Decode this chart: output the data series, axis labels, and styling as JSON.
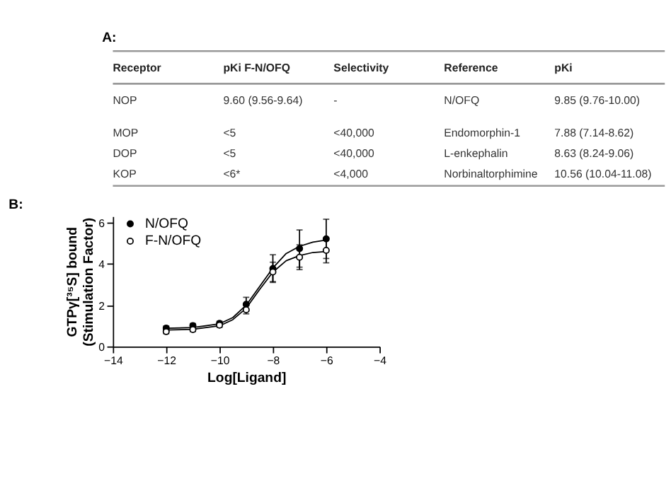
{
  "chart_data": [
    {
      "type": "other",
      "title": "A:",
      "categories": [
        "Receptor",
        "pKi F-N/OFQ",
        "Selectivity",
        "Reference",
        "pKi"
      ],
      "annotations": [
        "NOP",
        "9.60  (9.56-9.64)",
        "-",
        "N/OFQ",
        "9.85   (9.76-10.00)",
        "MOP",
        "<5",
        "<40,000",
        "Endomorphin-1",
        "7.88   (7.14-8.62)",
        "DOP",
        "<5",
        "<40,000",
        "L-enkephalin",
        "8.63   (8.24-9.06)",
        "KOP",
        "<6*",
        "<4,000",
        "Norbinaltorphimine",
        "10.56 (10.04-11.08)"
      ]
    },
    {
      "type": "scatter",
      "title": "B:",
      "xlabel": "Log[Ligand]",
      "ylabel": "GTPγ[³⁵S] bound\n(Stimulation Factor)",
      "x": [
        -12,
        -11,
        -10,
        -9,
        -8,
        -7,
        -6
      ],
      "xlim": [
        -14,
        -4
      ],
      "xticks": [
        -14,
        -12,
        -10,
        -8,
        -6,
        -4
      ],
      "ylim": [
        0,
        6.3
      ],
      "yticks": [
        0,
        2,
        4,
        6
      ],
      "grid": false,
      "legend": "top left",
      "series": [
        {
          "name": "N/OFQ",
          "color": "#000000",
          "marker": "circle",
          "values": [
            0.89,
            1.01,
            1.12,
            2.04,
            3.77,
            4.74,
            5.21
          ],
          "errors": [
            0.1,
            0.1,
            0.1,
            0.34,
            0.67,
            0.9,
            0.95
          ]
        },
        {
          "name": "F-N/OFQ",
          "color": "#000000",
          "marker": "circle",
          "values": [
            0.72,
            0.82,
            1.03,
            1.78,
            3.61,
            4.32,
            4.65
          ],
          "errors": [
            0.1,
            0.1,
            0.1,
            0.2,
            0.47,
            0.6,
            0.6
          ]
        },
        {
          "type": "line",
          "color": "#000000",
          "x": [
            -12,
            -11,
            -10,
            -9.5,
            -9,
            -8.5,
            -8,
            -7.5,
            -7,
            -6.5,
            -6
          ],
          "values": [
            0.88,
            0.92,
            1.1,
            1.4,
            2.0,
            2.9,
            3.8,
            4.5,
            4.85,
            5.05,
            5.15
          ]
        },
        {
          "type": "line",
          "color": "#000000",
          "x": [
            -12,
            -11,
            -10,
            -9.5,
            -9,
            -8.5,
            -8,
            -7.5,
            -7,
            -6.5,
            -6
          ],
          "values": [
            0.8,
            0.83,
            1.0,
            1.3,
            1.85,
            2.75,
            3.6,
            4.15,
            4.4,
            4.55,
            4.6
          ]
        }
      ]
    }
  ]
}
